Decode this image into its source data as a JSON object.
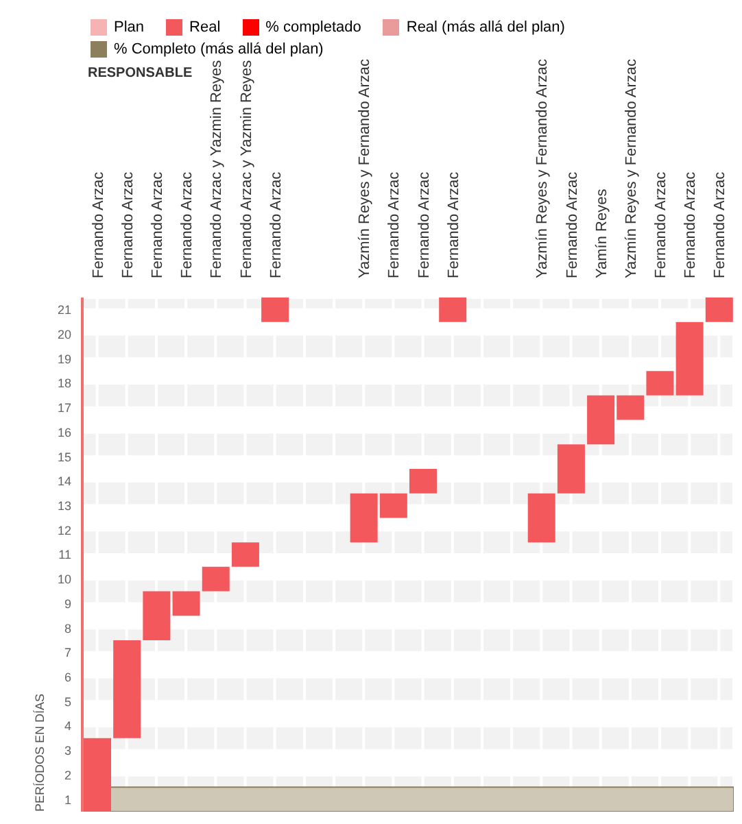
{
  "chart_data": {
    "type": "bar",
    "xlabel": "RESPONSABLE",
    "ylabel": "PERÍODOS EN DÍAS",
    "categories": [
      "Fernando Arzac",
      "Fernando Arzac",
      "Fernando Arzac",
      "Fernando Arzac",
      "Fernando Arzac y Yazmin Reyes",
      "Fernando Arzac y Yazmin Reyes",
      "Fernando Arzac",
      null,
      null,
      "Yazmín Reyes y Fernando Arzac",
      "Fernando Arzac",
      "Fernando Arzac",
      "Fernando Arzac",
      null,
      null,
      "Yazmín Reyes y Fernando Arzac",
      "Fernando Arzac",
      "Yamín Reyes",
      "Yazmín Reyes y Fernando Arzac",
      "Fernando Arzac",
      "Fernando Arzac",
      "Fernando Arzac"
    ],
    "series": [
      {
        "name": "Plan",
        "color": "#f6b3b3",
        "values": [
          null,
          null,
          null,
          null,
          null,
          null,
          null,
          null,
          null,
          null,
          null,
          null,
          null,
          null,
          null,
          null,
          null,
          null,
          null,
          null,
          null,
          null
        ]
      },
      {
        "name": "Real",
        "color": "#f2585c",
        "base": [
          0.5,
          3.5,
          7.5,
          8.5,
          9.5,
          10.5,
          20.5,
          null,
          null,
          11.5,
          12.5,
          13.5,
          20.5,
          null,
          null,
          11.5,
          13.5,
          15.5,
          16.5,
          17.5,
          17.5,
          20.5
        ],
        "values": [
          3,
          4,
          2,
          1,
          1,
          1,
          1,
          null,
          null,
          2,
          1,
          1,
          1,
          null,
          null,
          2,
          2,
          2,
          1,
          1,
          3,
          1
        ]
      },
      {
        "name": "% completado",
        "color": "#ff0000",
        "values": [
          null,
          null,
          null,
          null,
          null,
          null,
          null,
          null,
          null,
          null,
          null,
          null,
          null,
          null,
          null,
          null,
          null,
          null,
          null,
          null,
          null,
          null
        ]
      },
      {
        "name": "Real (más allá del plan)",
        "color": "#e99a9a",
        "values": [
          null,
          null,
          null,
          null,
          null,
          null,
          null,
          null,
          null,
          null,
          null,
          null,
          null,
          null,
          null,
          null,
          null,
          null,
          null,
          null,
          null,
          null
        ]
      },
      {
        "name": "% Completo (más allá del plan)",
        "color": "#8c7f5c",
        "values": [
          null,
          null,
          null,
          null,
          null,
          null,
          null,
          null,
          null,
          null,
          null,
          null,
          null,
          null,
          null,
          null,
          null,
          null,
          null,
          null,
          null,
          null
        ]
      }
    ],
    "ylim": [
      0.5,
      21.5
    ],
    "yticks": [
      1,
      2,
      3,
      4,
      5,
      6,
      7,
      8,
      9,
      10,
      11,
      12,
      13,
      14,
      15,
      16,
      17,
      18,
      19,
      20,
      21
    ],
    "bands": [
      {
        "axis": "y",
        "from": 0.5,
        "to": 1.5,
        "color": "#cfc8b6"
      }
    ],
    "grid": true,
    "legend": "top"
  }
}
